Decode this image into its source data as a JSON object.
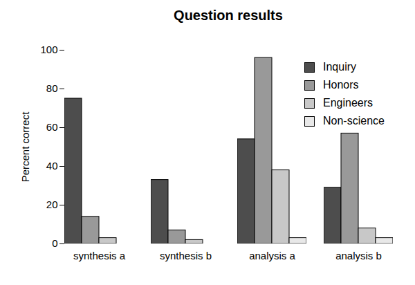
{
  "chart_data": {
    "type": "bar",
    "title": "Question results",
    "y_label": "Percent correct",
    "categories": [
      "synthesis a",
      "synthesis b",
      "analysis a",
      "analysis b"
    ],
    "series": [
      {
        "name": "Inquiry",
        "color": "#4d4d4d",
        "values": [
          75,
          33,
          54,
          29
        ]
      },
      {
        "name": "Honors",
        "color": "#999999",
        "values": [
          14,
          7,
          96,
          57
        ]
      },
      {
        "name": "Engineers",
        "color": "#c8c8c8",
        "values": [
          3,
          2,
          38,
          8
        ]
      },
      {
        "name": "Non-science",
        "color": "#e8e8e8",
        "values": [
          0,
          0,
          3,
          3
        ]
      }
    ],
    "ylim": [
      0,
      100
    ],
    "yticks": [
      0,
      20,
      40,
      60,
      80,
      100
    ],
    "grid": false,
    "legend": "top-right"
  }
}
